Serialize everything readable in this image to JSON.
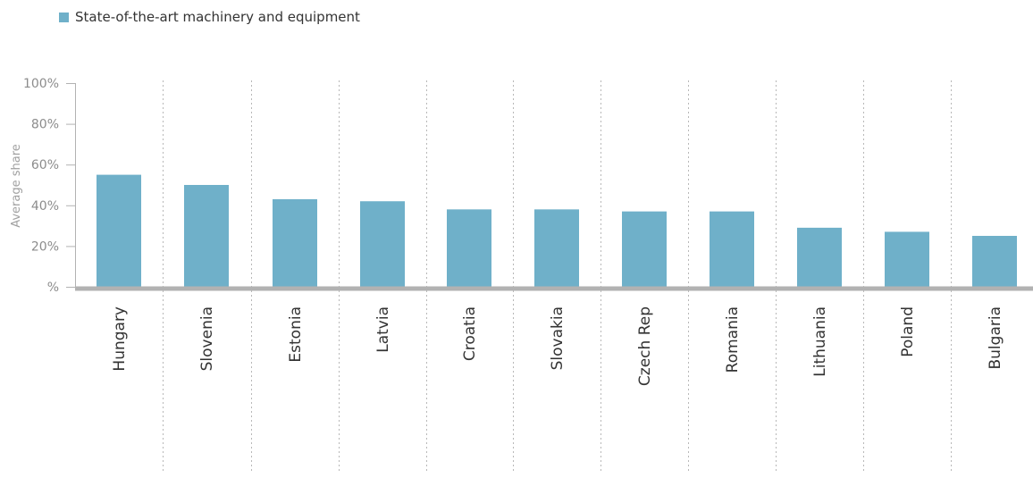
{
  "colors": {
    "bar": "#6fb0c9",
    "axis": "#b2b2b2",
    "divider": "#b8b8b8"
  },
  "legend": {
    "label": "State-of-the-art machinery and equipment",
    "icon": "square-swatch-icon"
  },
  "chart_data": {
    "type": "bar",
    "title": "",
    "xlabel": "",
    "ylabel": "Average share",
    "ylim": [
      0,
      100
    ],
    "yticks": [
      0,
      20,
      40,
      60,
      80,
      100
    ],
    "ytick_labels": [
      "%",
      "20%",
      "40%",
      "60%",
      "80%",
      "100%"
    ],
    "categories": [
      "Hungary",
      "Slovenia",
      "Estonia",
      "Latvia",
      "Croatia",
      "Slovakia",
      "Czech Rep",
      "Romania",
      "Lithuania",
      "Poland",
      "Bulgaria"
    ],
    "series": [
      {
        "name": "State-of-the-art machinery and equipment",
        "values": [
          55,
          50,
          43,
          42,
          38,
          38,
          37,
          37,
          29,
          27,
          25
        ]
      }
    ],
    "grid": false,
    "legend_position": "top-left"
  }
}
